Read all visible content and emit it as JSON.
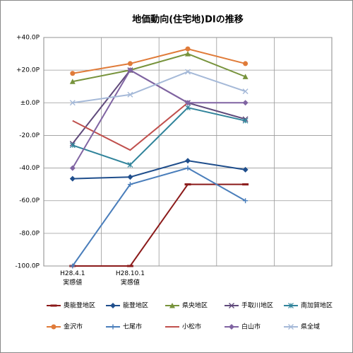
{
  "chart_data": {
    "type": "line",
    "title": "地価動向(住宅地)DIの推移",
    "categories": [
      "H28.4.1\n実感値",
      "H28.10.1\n実感値",
      null,
      null,
      null
    ],
    "ylim": [
      -100,
      40
    ],
    "yticks": [
      {
        "value": 40,
        "label": "+40.0P"
      },
      {
        "value": 20,
        "label": "+20.0P"
      },
      {
        "value": 0,
        "label": "±0.0P"
      },
      {
        "value": -20,
        "label": "-20.0P"
      },
      {
        "value": -40,
        "label": "-40.0P"
      },
      {
        "value": -60,
        "label": "-60.0P"
      },
      {
        "value": -80,
        "label": "-80.0P"
      },
      {
        "value": -100,
        "label": "-100.0P"
      }
    ],
    "grid": true,
    "legend": "bottom",
    "series": [
      {
        "name": "奥能登地区",
        "color": "#8b1a1a",
        "marker": "dash",
        "values": [
          -100,
          -100,
          -50,
          -50,
          null
        ]
      },
      {
        "name": "能登地区",
        "color": "#1f4e8c",
        "marker": "diamond",
        "values": [
          -46.5,
          -45.5,
          -35.5,
          -41,
          null
        ]
      },
      {
        "name": "県央地区",
        "color": "#77933c",
        "marker": "triangle",
        "values": [
          13,
          20,
          30,
          16,
          null
        ]
      },
      {
        "name": "手取川地区",
        "color": "#604a7b",
        "marker": "x",
        "values": [
          -25,
          20,
          0,
          -10,
          null
        ]
      },
      {
        "name": "南加賀地区",
        "color": "#31849b",
        "marker": "asterisk",
        "values": [
          -26,
          -38,
          -3,
          -11,
          null
        ]
      },
      {
        "name": "金沢市",
        "color": "#e07b39",
        "marker": "circle",
        "values": [
          18,
          24,
          33,
          24,
          null
        ]
      },
      {
        "name": "七尾市",
        "color": "#4a7ebb",
        "marker": "plus",
        "values": [
          -100,
          -50,
          -40,
          -60,
          null
        ]
      },
      {
        "name": "小松市",
        "color": "#c0504d",
        "marker": "none",
        "values": [
          -11,
          -29,
          0,
          null,
          null
        ]
      },
      {
        "name": "白山市",
        "color": "#8064a2",
        "marker": "diamond",
        "values": [
          -40,
          20,
          0,
          0,
          null
        ]
      },
      {
        "name": "県全域",
        "color": "#a5b9d8",
        "marker": "x",
        "values": [
          0,
          5,
          19,
          7,
          null
        ]
      }
    ]
  }
}
